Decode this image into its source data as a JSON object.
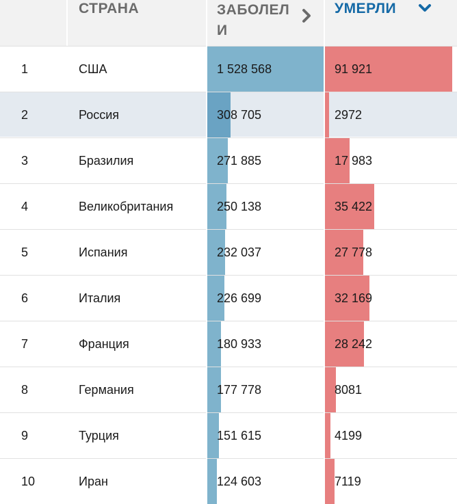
{
  "header": {
    "country_label": "СТРАНА",
    "cases_label": "ЗАБОЛЕЛИ",
    "deaths_label": "УМЕРЛИ"
  },
  "colors": {
    "cases_bar": "#7fb3cc",
    "deaths_bar": "#e77f7f",
    "active_sort": "#1469a6",
    "highlight_row": "#e4eaf0"
  },
  "rows": [
    {
      "rank": "1",
      "country": "США",
      "cases": "1 528 568",
      "deaths": "91 921",
      "cases_n": 1528568,
      "deaths_n": 91921,
      "highlighted": false
    },
    {
      "rank": "2",
      "country": "Россия",
      "cases": "308 705",
      "deaths": "2972",
      "cases_n": 308705,
      "deaths_n": 2972,
      "highlighted": true
    },
    {
      "rank": "3",
      "country": "Бразилия",
      "cases": "271 885",
      "deaths": "17 983",
      "cases_n": 271885,
      "deaths_n": 17983,
      "highlighted": false
    },
    {
      "rank": "4",
      "country": "Великобритания",
      "cases": "250 138",
      "deaths": "35 422",
      "cases_n": 250138,
      "deaths_n": 35422,
      "highlighted": false
    },
    {
      "rank": "5",
      "country": "Испания",
      "cases": "232 037",
      "deaths": "27 778",
      "cases_n": 232037,
      "deaths_n": 27778,
      "highlighted": false
    },
    {
      "rank": "6",
      "country": "Италия",
      "cases": "226 699",
      "deaths": "32 169",
      "cases_n": 226699,
      "deaths_n": 32169,
      "highlighted": false
    },
    {
      "rank": "7",
      "country": "Франция",
      "cases": "180 933",
      "deaths": "28 242",
      "cases_n": 180933,
      "deaths_n": 28242,
      "highlighted": false
    },
    {
      "rank": "8",
      "country": "Германия",
      "cases": "177 778",
      "deaths": "8081",
      "cases_n": 177778,
      "deaths_n": 8081,
      "highlighted": false
    },
    {
      "rank": "9",
      "country": "Турция",
      "cases": "151 615",
      "deaths": "4199",
      "cases_n": 151615,
      "deaths_n": 4199,
      "highlighted": false
    },
    {
      "rank": "10",
      "country": "Иран",
      "cases": "124 603",
      "deaths": "7119",
      "cases_n": 124603,
      "deaths_n": 7119,
      "highlighted": false
    }
  ]
}
